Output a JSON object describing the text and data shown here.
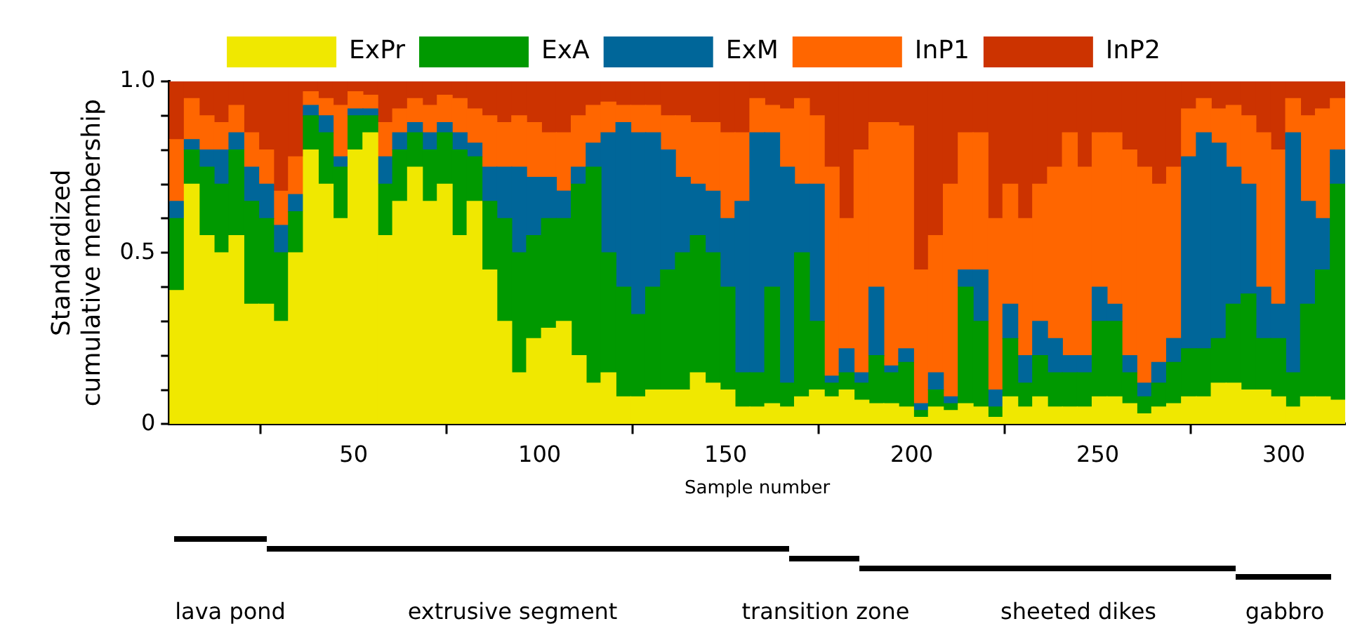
{
  "chart_data": {
    "type": "bar",
    "stacked": true,
    "xlabel": "Sample number",
    "ylabel": "Standardized cumulative membership",
    "legend": "top",
    "grid": false,
    "x": [
      2.5,
      6.5,
      10.5,
      14.5,
      18.5,
      22.5,
      26.5,
      30.5,
      34.5,
      38.5,
      42.5,
      46.5,
      50.5,
      54.5,
      58.5,
      62.5,
      66.5,
      70.5,
      74.5,
      78.5,
      82.5,
      86.5,
      90.5,
      94.5,
      98.5,
      102.5,
      106.5,
      110.5,
      114.5,
      118.5,
      122.5,
      126.5,
      130.5,
      134.5,
      138.5,
      142.5,
      146.5,
      150.5,
      154.5,
      158.5,
      162.5,
      166.5,
      170.5,
      174.5,
      178.5,
      182.5,
      186.5,
      190.5,
      194.5,
      198.5,
      202.5,
      206.5,
      210.5,
      214.5,
      218.5,
      222.5,
      226.5,
      230.5,
      234.5,
      238.5,
      242.5,
      246.5,
      250.5,
      254.5,
      258.5,
      262.5,
      266.5,
      270.5,
      274.5,
      278.5,
      282.5,
      286.5,
      290.5,
      294.5,
      298.5,
      302.5,
      306.5,
      310.5,
      314.5
    ],
    "xlim": [
      0.5,
      316.5
    ],
    "xticks": [
      50,
      100,
      150,
      200,
      250,
      300
    ],
    "ylim": [
      0,
      1
    ],
    "yticks": [
      0,
      {
        "value": 0.1,
        "label": null
      },
      {
        "value": 0.2,
        "label": null
      },
      {
        "value": 0.3,
        "label": null
      },
      {
        "value": 0.4,
        "label": null
      },
      0.5,
      {
        "value": 0.6,
        "label": null
      },
      {
        "value": 0.7,
        "label": null
      },
      {
        "value": 0.8,
        "label": null
      },
      {
        "value": 0.9,
        "label": null
      },
      {
        "value": 1,
        "label": "1.0"
      }
    ],
    "series": [
      {
        "name": "ExPr",
        "color": "#f0e800",
        "values": [
          0.39,
          0.7,
          0.55,
          0.5,
          0.55,
          0.35,
          0.35,
          0.3,
          0.5,
          0.8,
          0.7,
          0.6,
          0.8,
          0.85,
          0.55,
          0.65,
          0.75,
          0.65,
          0.7,
          0.55,
          0.65,
          0.45,
          0.3,
          0.15,
          0.25,
          0.28,
          0.3,
          0.2,
          0.12,
          0.15,
          0.08,
          0.08,
          0.1,
          0.1,
          0.1,
          0.15,
          0.12,
          0.1,
          0.05,
          0.05,
          0.06,
          0.05,
          0.08,
          0.1,
          0.08,
          0.1,
          0.07,
          0.06,
          0.06,
          0.05,
          0.02,
          0.05,
          0.04,
          0.06,
          0.05,
          0.02,
          0.08,
          0.05,
          0.08,
          0.05,
          0.05,
          0.05,
          0.08,
          0.08,
          0.06,
          0.03,
          0.05,
          0.06,
          0.08,
          0.08,
          0.12,
          0.12,
          0.1,
          0.1,
          0.08,
          0.05,
          0.08,
          0.08,
          0.07
        ]
      },
      {
        "name": "ExA",
        "color": "#009900",
        "values": [
          0.21,
          0.1,
          0.2,
          0.2,
          0.25,
          0.3,
          0.25,
          0.2,
          0.12,
          0.1,
          0.15,
          0.15,
          0.1,
          0.05,
          0.15,
          0.15,
          0.1,
          0.15,
          0.15,
          0.25,
          0.13,
          0.2,
          0.3,
          0.35,
          0.3,
          0.32,
          0.3,
          0.5,
          0.63,
          0.35,
          0.32,
          0.24,
          0.3,
          0.35,
          0.4,
          0.4,
          0.38,
          0.3,
          0.1,
          0.1,
          0.34,
          0.07,
          0.42,
          0.2,
          0.04,
          0.05,
          0.05,
          0.14,
          0.09,
          0.13,
          0.02,
          0.05,
          0.02,
          0.34,
          0.25,
          0.03,
          0.17,
          0.07,
          0.12,
          0.1,
          0.1,
          0.1,
          0.22,
          0.22,
          0.09,
          0.05,
          0.07,
          0.12,
          0.14,
          0.14,
          0.13,
          0.23,
          0.28,
          0.15,
          0.17,
          0.1,
          0.27,
          0.37,
          0.63
        ]
      },
      {
        "name": "ExM",
        "color": "#006699",
        "values": [
          0.05,
          0.03,
          0.05,
          0.1,
          0.05,
          0.1,
          0.1,
          0.08,
          0.05,
          0.03,
          0.05,
          0.03,
          0.02,
          0.02,
          0.08,
          0.05,
          0.03,
          0.05,
          0.03,
          0.05,
          0.04,
          0.1,
          0.15,
          0.25,
          0.17,
          0.12,
          0.08,
          0.05,
          0.07,
          0.35,
          0.48,
          0.53,
          0.45,
          0.35,
          0.22,
          0.15,
          0.18,
          0.2,
          0.5,
          0.7,
          0.45,
          0.63,
          0.2,
          0.4,
          0.02,
          0.07,
          0.03,
          0.2,
          0.02,
          0.04,
          0.02,
          0.05,
          0.02,
          0.05,
          0.15,
          0.05,
          0.1,
          0.08,
          0.1,
          0.1,
          0.05,
          0.05,
          0.1,
          0.05,
          0.05,
          0.04,
          0.06,
          0.07,
          0.56,
          0.63,
          0.57,
          0.4,
          0.32,
          0.15,
          0.1,
          0.7,
          0.3,
          0.15,
          0.1
        ]
      },
      {
        "name": "InP1",
        "color": "#ff6600",
        "values": [
          0.18,
          0.12,
          0.1,
          0.08,
          0.08,
          0.1,
          0.1,
          0.1,
          0.11,
          0.04,
          0.05,
          0.15,
          0.05,
          0.04,
          0.1,
          0.07,
          0.07,
          0.08,
          0.08,
          0.1,
          0.1,
          0.15,
          0.13,
          0.15,
          0.16,
          0.13,
          0.17,
          0.15,
          0.11,
          0.09,
          0.05,
          0.08,
          0.08,
          0.1,
          0.18,
          0.18,
          0.2,
          0.25,
          0.2,
          0.1,
          0.08,
          0.17,
          0.25,
          0.2,
          0.61,
          0.38,
          0.65,
          0.48,
          0.71,
          0.65,
          0.39,
          0.4,
          0.62,
          0.4,
          0.4,
          0.5,
          0.35,
          0.4,
          0.4,
          0.5,
          0.65,
          0.55,
          0.45,
          0.5,
          0.6,
          0.63,
          0.52,
          0.5,
          0.14,
          0.1,
          0.1,
          0.18,
          0.2,
          0.45,
          0.45,
          0.1,
          0.25,
          0.32,
          0.15
        ]
      },
      {
        "name": "InP2",
        "color": "#cc3300",
        "values": [
          0.17,
          0.05,
          0.1,
          0.12,
          0.07,
          0.15,
          0.2,
          0.32,
          0.22,
          0.03,
          0.05,
          0.07,
          0.03,
          0.04,
          0.12,
          0.08,
          0.05,
          0.07,
          0.04,
          0.05,
          0.08,
          0.1,
          0.12,
          0.1,
          0.12,
          0.15,
          0.15,
          0.1,
          0.07,
          0.06,
          0.07,
          0.07,
          0.07,
          0.1,
          0.1,
          0.12,
          0.12,
          0.15,
          0.15,
          0.05,
          0.07,
          0.08,
          0.05,
          0.1,
          0.25,
          0.4,
          0.2,
          0.12,
          0.12,
          0.13,
          0.55,
          0.45,
          0.3,
          0.15,
          0.15,
          0.4,
          0.3,
          0.4,
          0.3,
          0.25,
          0.15,
          0.25,
          0.15,
          0.15,
          0.2,
          0.25,
          0.3,
          0.25,
          0.08,
          0.05,
          0.08,
          0.07,
          0.1,
          0.15,
          0.2,
          0.05,
          0.1,
          0.08,
          0.05
        ]
      }
    ],
    "annotations": [
      "lava pond",
      "extrusive segment",
      "transition zone",
      "sheeted dikes",
      "gabbro"
    ]
  }
}
